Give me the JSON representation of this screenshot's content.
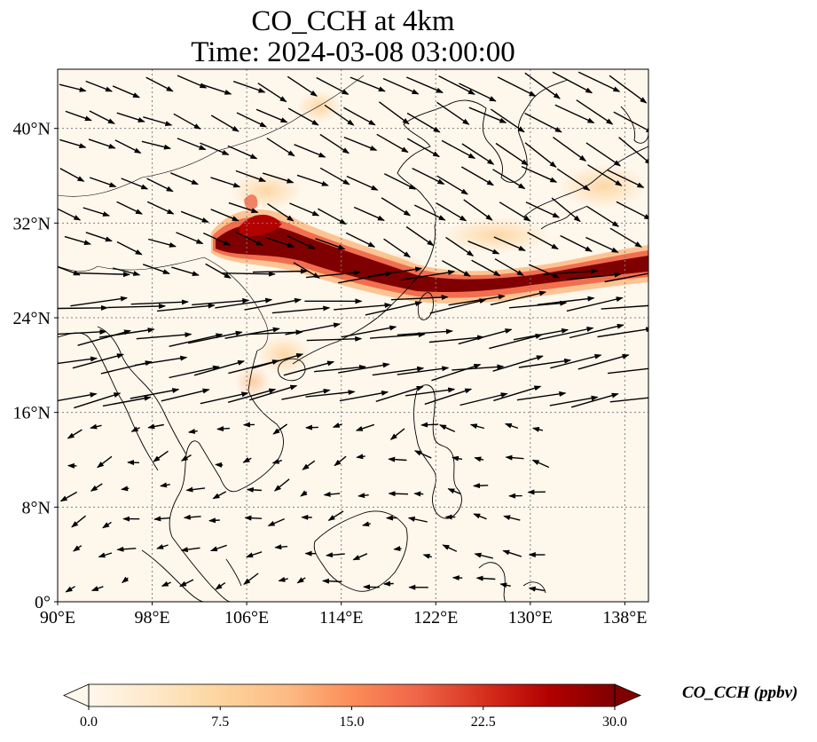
{
  "title_line1": "CO_CCH at 4km",
  "title_line2": "Time: 2024-03-08 03:00:00",
  "map": {
    "projection": "PlateCarree",
    "lon_range": [
      90,
      140
    ],
    "lat_range": [
      0,
      45
    ],
    "gridlines": "dotted",
    "lon_ticks": [
      {
        "value": 90,
        "label": "90°E"
      },
      {
        "value": 98,
        "label": "98°E"
      },
      {
        "value": 106,
        "label": "106°E"
      },
      {
        "value": 114,
        "label": "114°E"
      },
      {
        "value": 122,
        "label": "122°E"
      },
      {
        "value": 130,
        "label": "130°E"
      },
      {
        "value": 138,
        "label": "138°E"
      }
    ],
    "lat_ticks": [
      {
        "value": 0,
        "label": "0°"
      },
      {
        "value": 8,
        "label": "8°N"
      },
      {
        "value": 16,
        "label": "16°N"
      },
      {
        "value": 24,
        "label": "24°N"
      },
      {
        "value": 32,
        "label": "32°N"
      },
      {
        "value": 40,
        "label": "40°N"
      }
    ],
    "field": "CO_CCH",
    "vectors": "wind arrows at 4km"
  },
  "colorbar": {
    "label": "CO_CCH (ppbv)",
    "min": 0.0,
    "max": 30.0,
    "extend": "both",
    "cmap": "OrRd",
    "colors": [
      "#fff7ec",
      "#fee8c8",
      "#fdd49e",
      "#fdbb84",
      "#fc8d59",
      "#ef6548",
      "#d7301f",
      "#b30000",
      "#7f0000"
    ],
    "ticks": [
      "0.0",
      "7.5",
      "15.0",
      "22.5",
      "30.0"
    ]
  },
  "colors": {
    "background": "#fef7ec",
    "plume_core": "#7f0000",
    "coastline": "#000000",
    "arrow": "#000000",
    "gridline": "#808080"
  }
}
